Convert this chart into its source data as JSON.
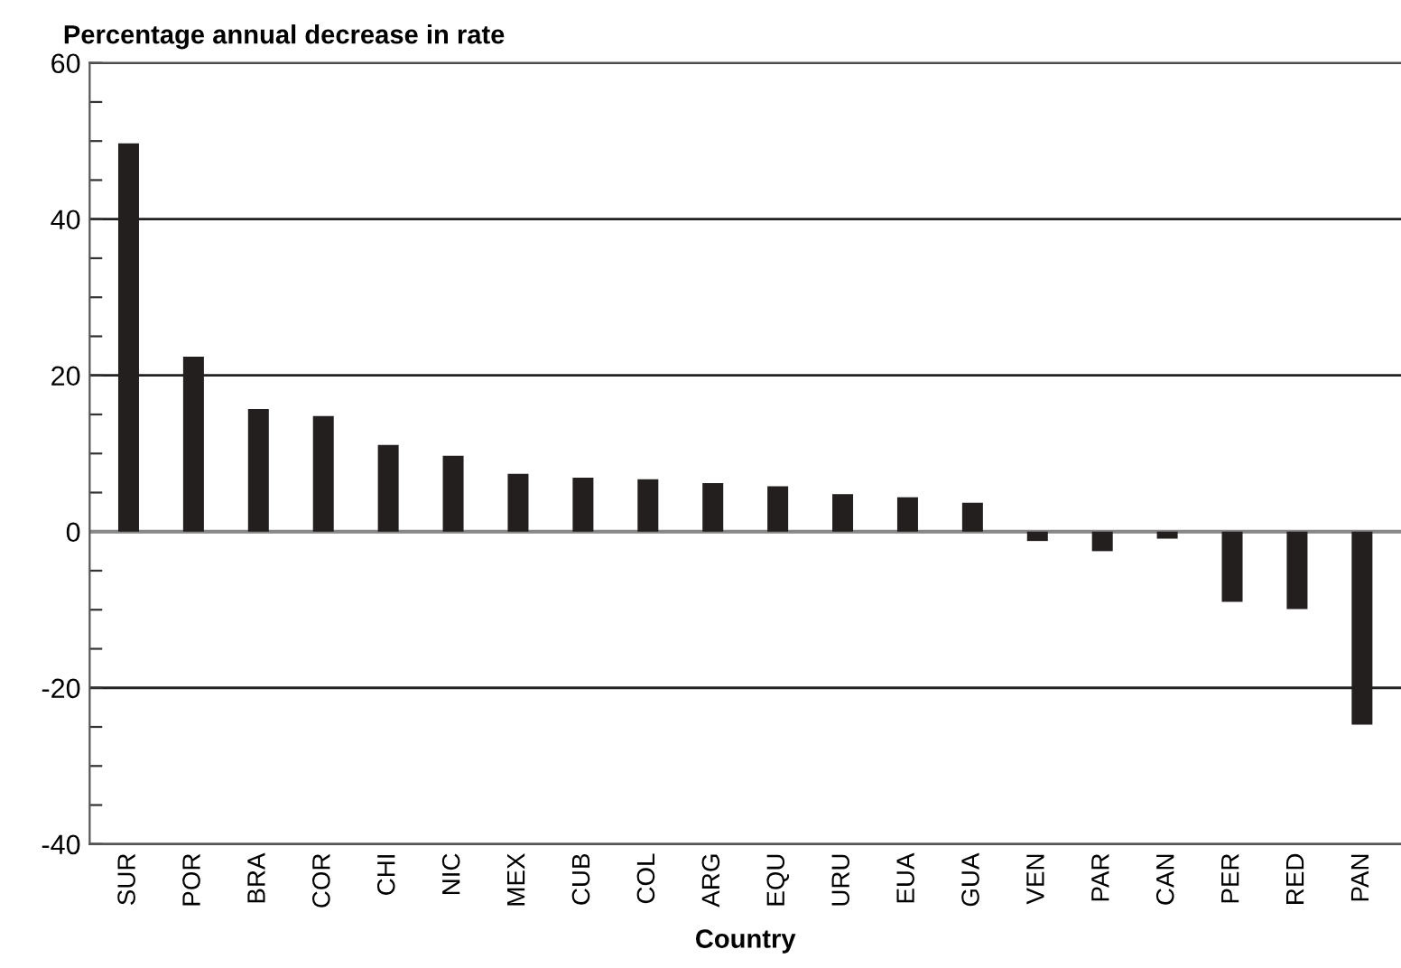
{
  "chart_data": {
    "type": "bar",
    "title": "Percentage annual decrease in rate",
    "xlabel": "Country",
    "categories": [
      "SUR",
      "POR",
      "BRA",
      "COR",
      "CHI",
      "NIC",
      "MEX",
      "CUB",
      "COL",
      "ARG",
      "EQU",
      "URU",
      "EUA",
      "GUA",
      "VEN",
      "PAR",
      "CAN",
      "PER",
      "RED",
      "PAN"
    ],
    "values": [
      49.7,
      22.4,
      15.7,
      14.8,
      11.1,
      9.7,
      7.4,
      6.9,
      6.7,
      6.2,
      5.8,
      4.8,
      4.4,
      3.7,
      -1.2,
      -2.5,
      -0.9,
      -9.0,
      -9.9,
      -24.7
    ],
    "color": "#231f1f",
    "ylim": [
      -40,
      60
    ],
    "yticks": [
      -40,
      {
        "value": -35,
        "label": null
      },
      {
        "value": -30,
        "label": null
      },
      {
        "value": -25,
        "label": null
      },
      -20,
      {
        "value": -15,
        "label": null
      },
      {
        "value": -10,
        "label": null
      },
      {
        "value": -5,
        "label": null
      },
      0,
      {
        "value": 5,
        "label": null
      },
      {
        "value": 10,
        "label": null
      },
      {
        "value": 15,
        "label": null
      },
      20,
      {
        "value": 25,
        "label": null
      },
      {
        "value": 30,
        "label": null
      },
      {
        "value": 35,
        "label": null
      },
      40,
      {
        "value": 45,
        "label": null
      },
      {
        "value": 50,
        "label": null
      },
      {
        "value": 55,
        "label": null
      },
      60
    ],
    "grid": "y",
    "legend": false
  }
}
